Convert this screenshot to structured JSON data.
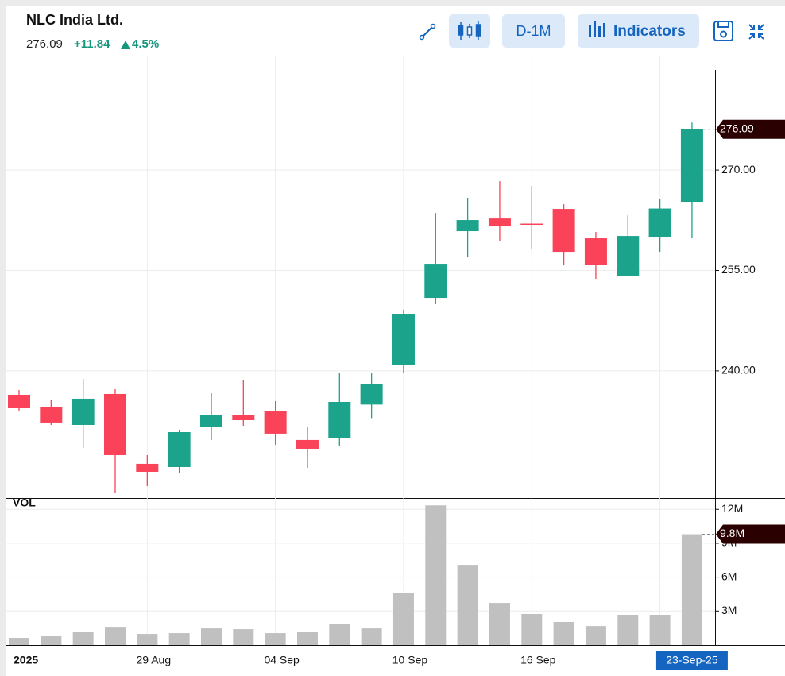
{
  "chart_data": {
    "type": "candlestick",
    "title": "NLC India Ltd.",
    "change": "+11.84",
    "change_pct": "4.5%",
    "toolbar": {
      "interval": "D-1M",
      "indicators": "Indicators"
    },
    "categories": [
      "2025",
      null,
      null,
      null,
      "29 Aug",
      null,
      null,
      null,
      "04 Sep",
      null,
      null,
      null,
      "10 Sep",
      null,
      null,
      null,
      "16 Sep",
      null,
      null,
      null,
      null,
      "23-Sep-25"
    ],
    "open": [
      236.43,
      234.65,
      231.92,
      236.55,
      226.11,
      225.63,
      231.68,
      233.46,
      233.94,
      229.67,
      229.91,
      234.96,
      240.82,
      250.9,
      260.87,
      262.76,
      262.0,
      264.19,
      259.8,
      254.22,
      260.04,
      265.26
    ],
    "high": [
      237.14,
      235.72,
      238.8,
      237.26,
      227.41,
      231.21,
      236.67,
      238.68,
      235.48,
      231.68,
      239.75,
      239.75,
      249.12,
      263.59,
      265.85,
      268.34,
      267.63,
      264.9,
      260.75,
      263.24,
      265.73,
      277.1
    ],
    "low": [
      234.06,
      231.92,
      228.48,
      221.72,
      222.79,
      224.8,
      229.67,
      231.8,
      228.96,
      225.52,
      228.72,
      232.94,
      239.63,
      249.95,
      257.07,
      259.44,
      258.26,
      255.77,
      253.75,
      254.22,
      257.78,
      259.8
    ],
    "close": [
      234.53,
      232.28,
      235.84,
      227.41,
      224.92,
      230.85,
      233.35,
      232.63,
      230.62,
      228.36,
      235.36,
      237.97,
      248.53,
      256.0,
      262.53,
      261.58,
      261.9,
      257.78,
      255.88,
      260.15,
      264.25,
      276.09
    ],
    "up_color": "#1ba38b",
    "down_color": "#fa4358",
    "ylim": [
      221,
      287.1
    ],
    "yticks": [
      {
        "value": 240,
        "label": "240.00"
      },
      {
        "value": 255,
        "label": "255.00"
      },
      {
        "value": 270,
        "label": "270.00"
      }
    ],
    "grid": true,
    "volume": {
      "label": "VOL",
      "color": "#c0c0c0",
      "values": [
        630000,
        770000,
        1190000,
        1610000,
        980000,
        1050000,
        1470000,
        1400000,
        1050000,
        1190000,
        1890000,
        1470000,
        4630000,
        12350000,
        7090000,
        3720000,
        2740000,
        2040000,
        1680000,
        2670000,
        2670000,
        9800000
      ],
      "value_labels": [
        null,
        null,
        null,
        null,
        null,
        null,
        null,
        null,
        null,
        null,
        null,
        null,
        null,
        null,
        null,
        null,
        null,
        null,
        null,
        null,
        null,
        "9.8M"
      ],
      "ylim": [
        0,
        13000000
      ],
      "yticks": [
        {
          "value": 3000000,
          "label": "3M"
        },
        {
          "value": 6000000,
          "label": "6M"
        },
        {
          "value": 9000000,
          "label": "9M"
        },
        {
          "value": 12000000,
          "label": "12M"
        }
      ]
    }
  }
}
